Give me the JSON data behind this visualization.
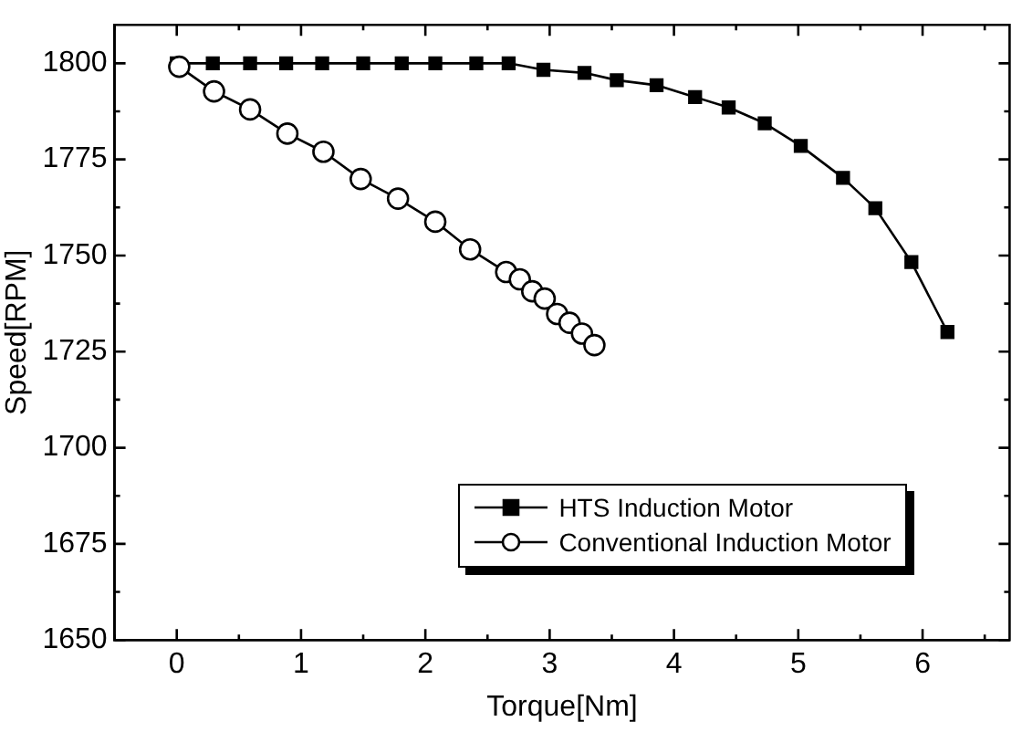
{
  "chart_data": {
    "type": "line",
    "xlabel": "Torque[Nm]",
    "ylabel": "Speed[RPM]",
    "xlim": [
      -0.5,
      6.7
    ],
    "ylim": [
      1650,
      1810
    ],
    "xticks": [
      {
        "value": -0.5,
        "label": null
      },
      0,
      {
        "value": 0.5,
        "label": null
      },
      1,
      {
        "value": 1.5,
        "label": null
      },
      2,
      {
        "value": 2.5,
        "label": null
      },
      3,
      {
        "value": 3.5,
        "label": null
      },
      4,
      {
        "value": 4.5,
        "label": null
      },
      5,
      {
        "value": 5.5,
        "label": null
      },
      6,
      {
        "value": 6.5,
        "label": null
      }
    ],
    "yticks": [
      1650,
      {
        "value": 1662.5,
        "label": null
      },
      1675,
      {
        "value": 1687.5,
        "label": null
      },
      1700,
      {
        "value": 1712.5,
        "label": null
      },
      1725,
      {
        "value": 1737.5,
        "label": null
      },
      1750,
      {
        "value": 1762.5,
        "label": null
      },
      1775,
      {
        "value": 1787.5,
        "label": null
      },
      1800
    ],
    "grid": false,
    "legend": "bottom right",
    "line_style": "solid",
    "series": [
      {
        "name": "HTS Induction Motor",
        "color": "#000000",
        "marker": "square",
        "x": [
          0,
          0.29,
          0.59,
          0.88,
          1.17,
          1.5,
          1.81,
          2.08,
          2.41,
          2.67,
          2.95,
          3.28,
          3.54,
          3.86,
          4.17,
          4.44,
          4.73,
          5.02,
          5.36,
          5.62,
          5.91,
          6.2
        ],
        "values": [
          1800,
          1800,
          1800,
          1800,
          1800,
          1800,
          1800,
          1800,
          1800,
          1800,
          1798.3,
          1797.5,
          1795.6,
          1794.3,
          1791.2,
          1788.5,
          1784.4,
          1778.5,
          1770.2,
          1762.3,
          1748.3,
          1730.1
        ]
      },
      {
        "name": "Conventional Induction Motor",
        "color": "#000000",
        "marker": "circle",
        "x": [
          0.02,
          0.3,
          0.59,
          0.89,
          1.18,
          1.48,
          1.78,
          2.08,
          2.36,
          2.65,
          2.76,
          2.86,
          2.96,
          3.06,
          3.16,
          3.26,
          3.36
        ],
        "values": [
          1799.1,
          1792.7,
          1788,
          1781.7,
          1777,
          1769.9,
          1764.8,
          1758.8,
          1751.6,
          1745.7,
          1743.8,
          1740.7,
          1738.8,
          1734.8,
          1732.5,
          1729.7,
          1726.7
        ]
      }
    ]
  }
}
